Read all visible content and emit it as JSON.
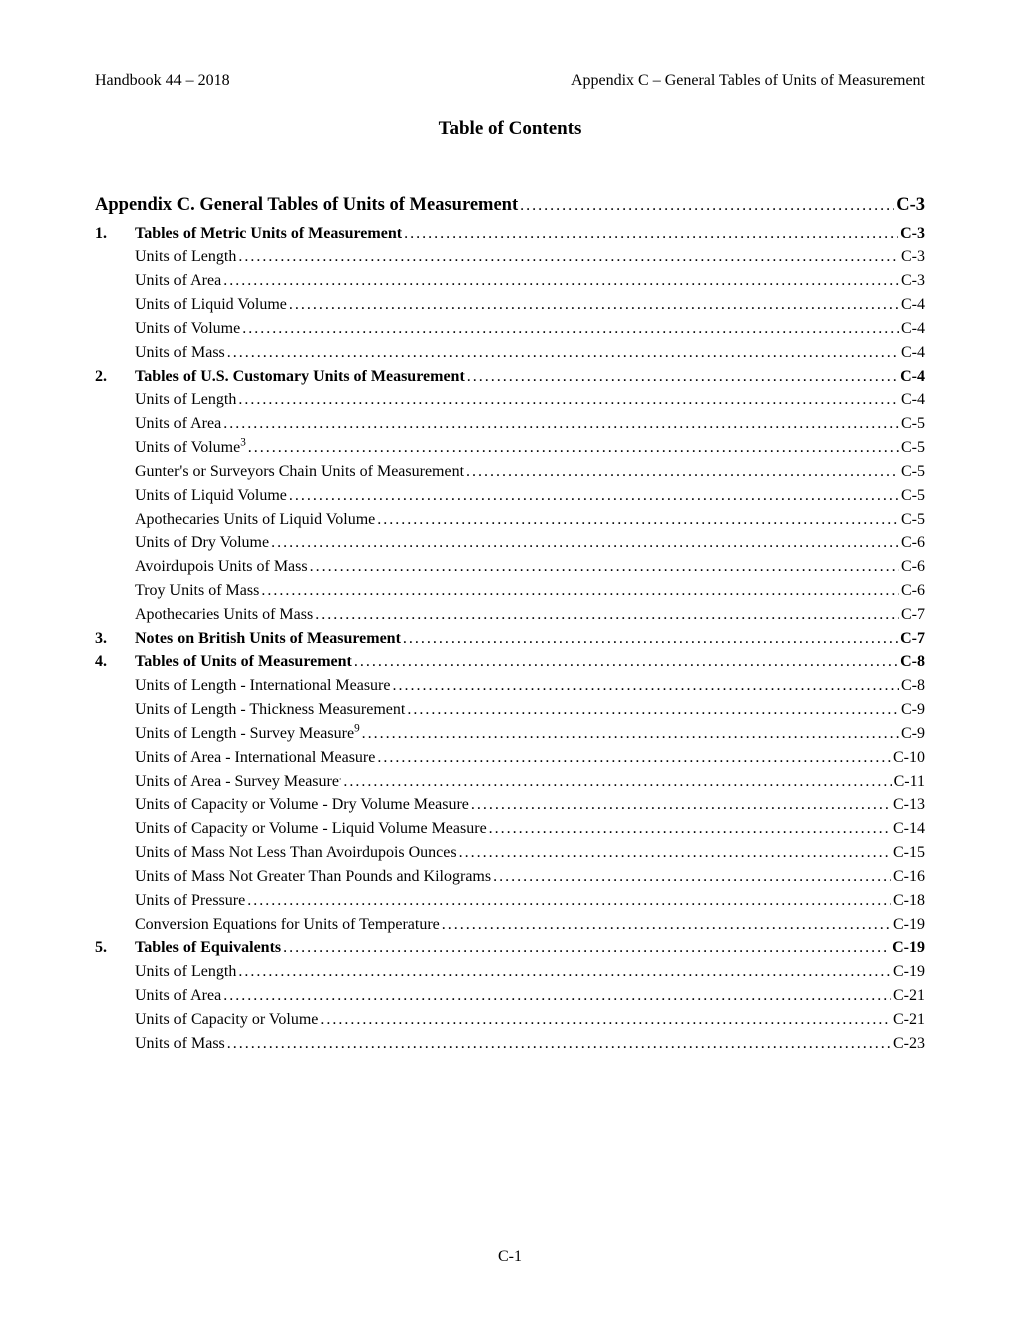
{
  "header": {
    "left": "Handbook 44 – 2018",
    "right": "Appendix C – General Tables of Units of Measurement"
  },
  "title": "Table of Contents",
  "footer": "C-1",
  "toc": [
    {
      "level": 0,
      "num": "",
      "label": "Appendix C. General Tables of Units of Measurement",
      "page": "C-3"
    },
    {
      "level": 1,
      "num": "1.",
      "label": "Tables of Metric Units of Measurement",
      "page": "C-3"
    },
    {
      "level": 2,
      "num": "",
      "label": "Units of Length",
      "page": "C-3"
    },
    {
      "level": 2,
      "num": "",
      "label": "Units of Area",
      "page": "C-3"
    },
    {
      "level": 2,
      "num": "",
      "label": "Units of Liquid Volume",
      "page": "C-4"
    },
    {
      "level": 2,
      "num": "",
      "label": "Units of Volume",
      "page": "C-4"
    },
    {
      "level": 2,
      "num": "",
      "label": "Units of Mass",
      "page": "C-4"
    },
    {
      "level": 1,
      "num": "2.",
      "label": "Tables of U.S. Customary Units of Measurement",
      "page": "C-4"
    },
    {
      "level": 2,
      "num": "",
      "label": "Units of Length",
      "page": "C-4"
    },
    {
      "level": 2,
      "num": "",
      "label": "Units of Area",
      "page": "C-5"
    },
    {
      "level": 2,
      "num": "",
      "label": "Units of Volume",
      "sup": "3",
      "page": "C-5"
    },
    {
      "level": 2,
      "num": "",
      "label": "Gunter's or Surveyors Chain Units of Measurement",
      "page": "C-5"
    },
    {
      "level": 2,
      "num": "",
      "label": "Units of Liquid Volume",
      "page": "C-5"
    },
    {
      "level": 2,
      "num": "",
      "label": "Apothecaries Units of Liquid Volume",
      "page": "C-5"
    },
    {
      "level": 2,
      "num": "",
      "label": "Units of Dry Volume",
      "page": "C-6"
    },
    {
      "level": 2,
      "num": "",
      "label": "Avoirdupois Units of Mass",
      "page": "C-6"
    },
    {
      "level": 2,
      "num": "",
      "label": "Troy Units of Mass",
      "page": "C-6"
    },
    {
      "level": 2,
      "num": "",
      "label": "Apothecaries Units of Mass",
      "page": "C-7"
    },
    {
      "level": 1,
      "num": "3.",
      "label": "Notes on British Units of Measurement",
      "page": "C-7"
    },
    {
      "level": 1,
      "num": "4.",
      "label": "Tables of Units of Measurement",
      "page": "C-8"
    },
    {
      "level": 2,
      "num": "",
      "label": "Units of Length - International Measure",
      "page": "C-8"
    },
    {
      "level": 2,
      "num": "",
      "label": "Units of Length - Thickness Measurement",
      "page": "C-9"
    },
    {
      "level": 2,
      "num": "",
      "label": "Units of Length - Survey Measure",
      "sup": "9",
      "page": "C-9"
    },
    {
      "level": 2,
      "num": "",
      "label": "Units of Area - International Measure",
      "page": "C-10"
    },
    {
      "level": 2,
      "num": "",
      "label": "Units of Area - Survey Measure",
      "sup": ".",
      "page": "C-11"
    },
    {
      "level": 2,
      "num": "",
      "label": "Units of Capacity or Volume - Dry Volume Measure",
      "page": "C-13"
    },
    {
      "level": 2,
      "num": "",
      "label": "Units of Capacity or Volume - Liquid Volume Measure",
      "page": "C-14"
    },
    {
      "level": 2,
      "num": "",
      "label": "Units of Mass Not Less Than Avoirdupois Ounces",
      "page": "C-15"
    },
    {
      "level": 2,
      "num": "",
      "label": "Units of Mass Not Greater Than Pounds and Kilograms",
      "page": "C-16"
    },
    {
      "level": 2,
      "num": "",
      "label": "Units of Pressure",
      "page": "C-18"
    },
    {
      "level": 2,
      "num": "",
      "label": "Conversion Equations for Units of Temperature",
      "page": "C-19"
    },
    {
      "level": 1,
      "num": "5.",
      "label": "Tables of Equivalents",
      "page": "C-19"
    },
    {
      "level": 2,
      "num": "",
      "label": "Units of Length",
      "page": "C-19"
    },
    {
      "level": 2,
      "num": "",
      "label": "Units of Area",
      "page": "C-21"
    },
    {
      "level": 2,
      "num": "",
      "label": "Units of Capacity or Volume",
      "page": "C-21"
    },
    {
      "level": 2,
      "num": "",
      "label": "Units of Mass",
      "page": "C-23"
    }
  ]
}
